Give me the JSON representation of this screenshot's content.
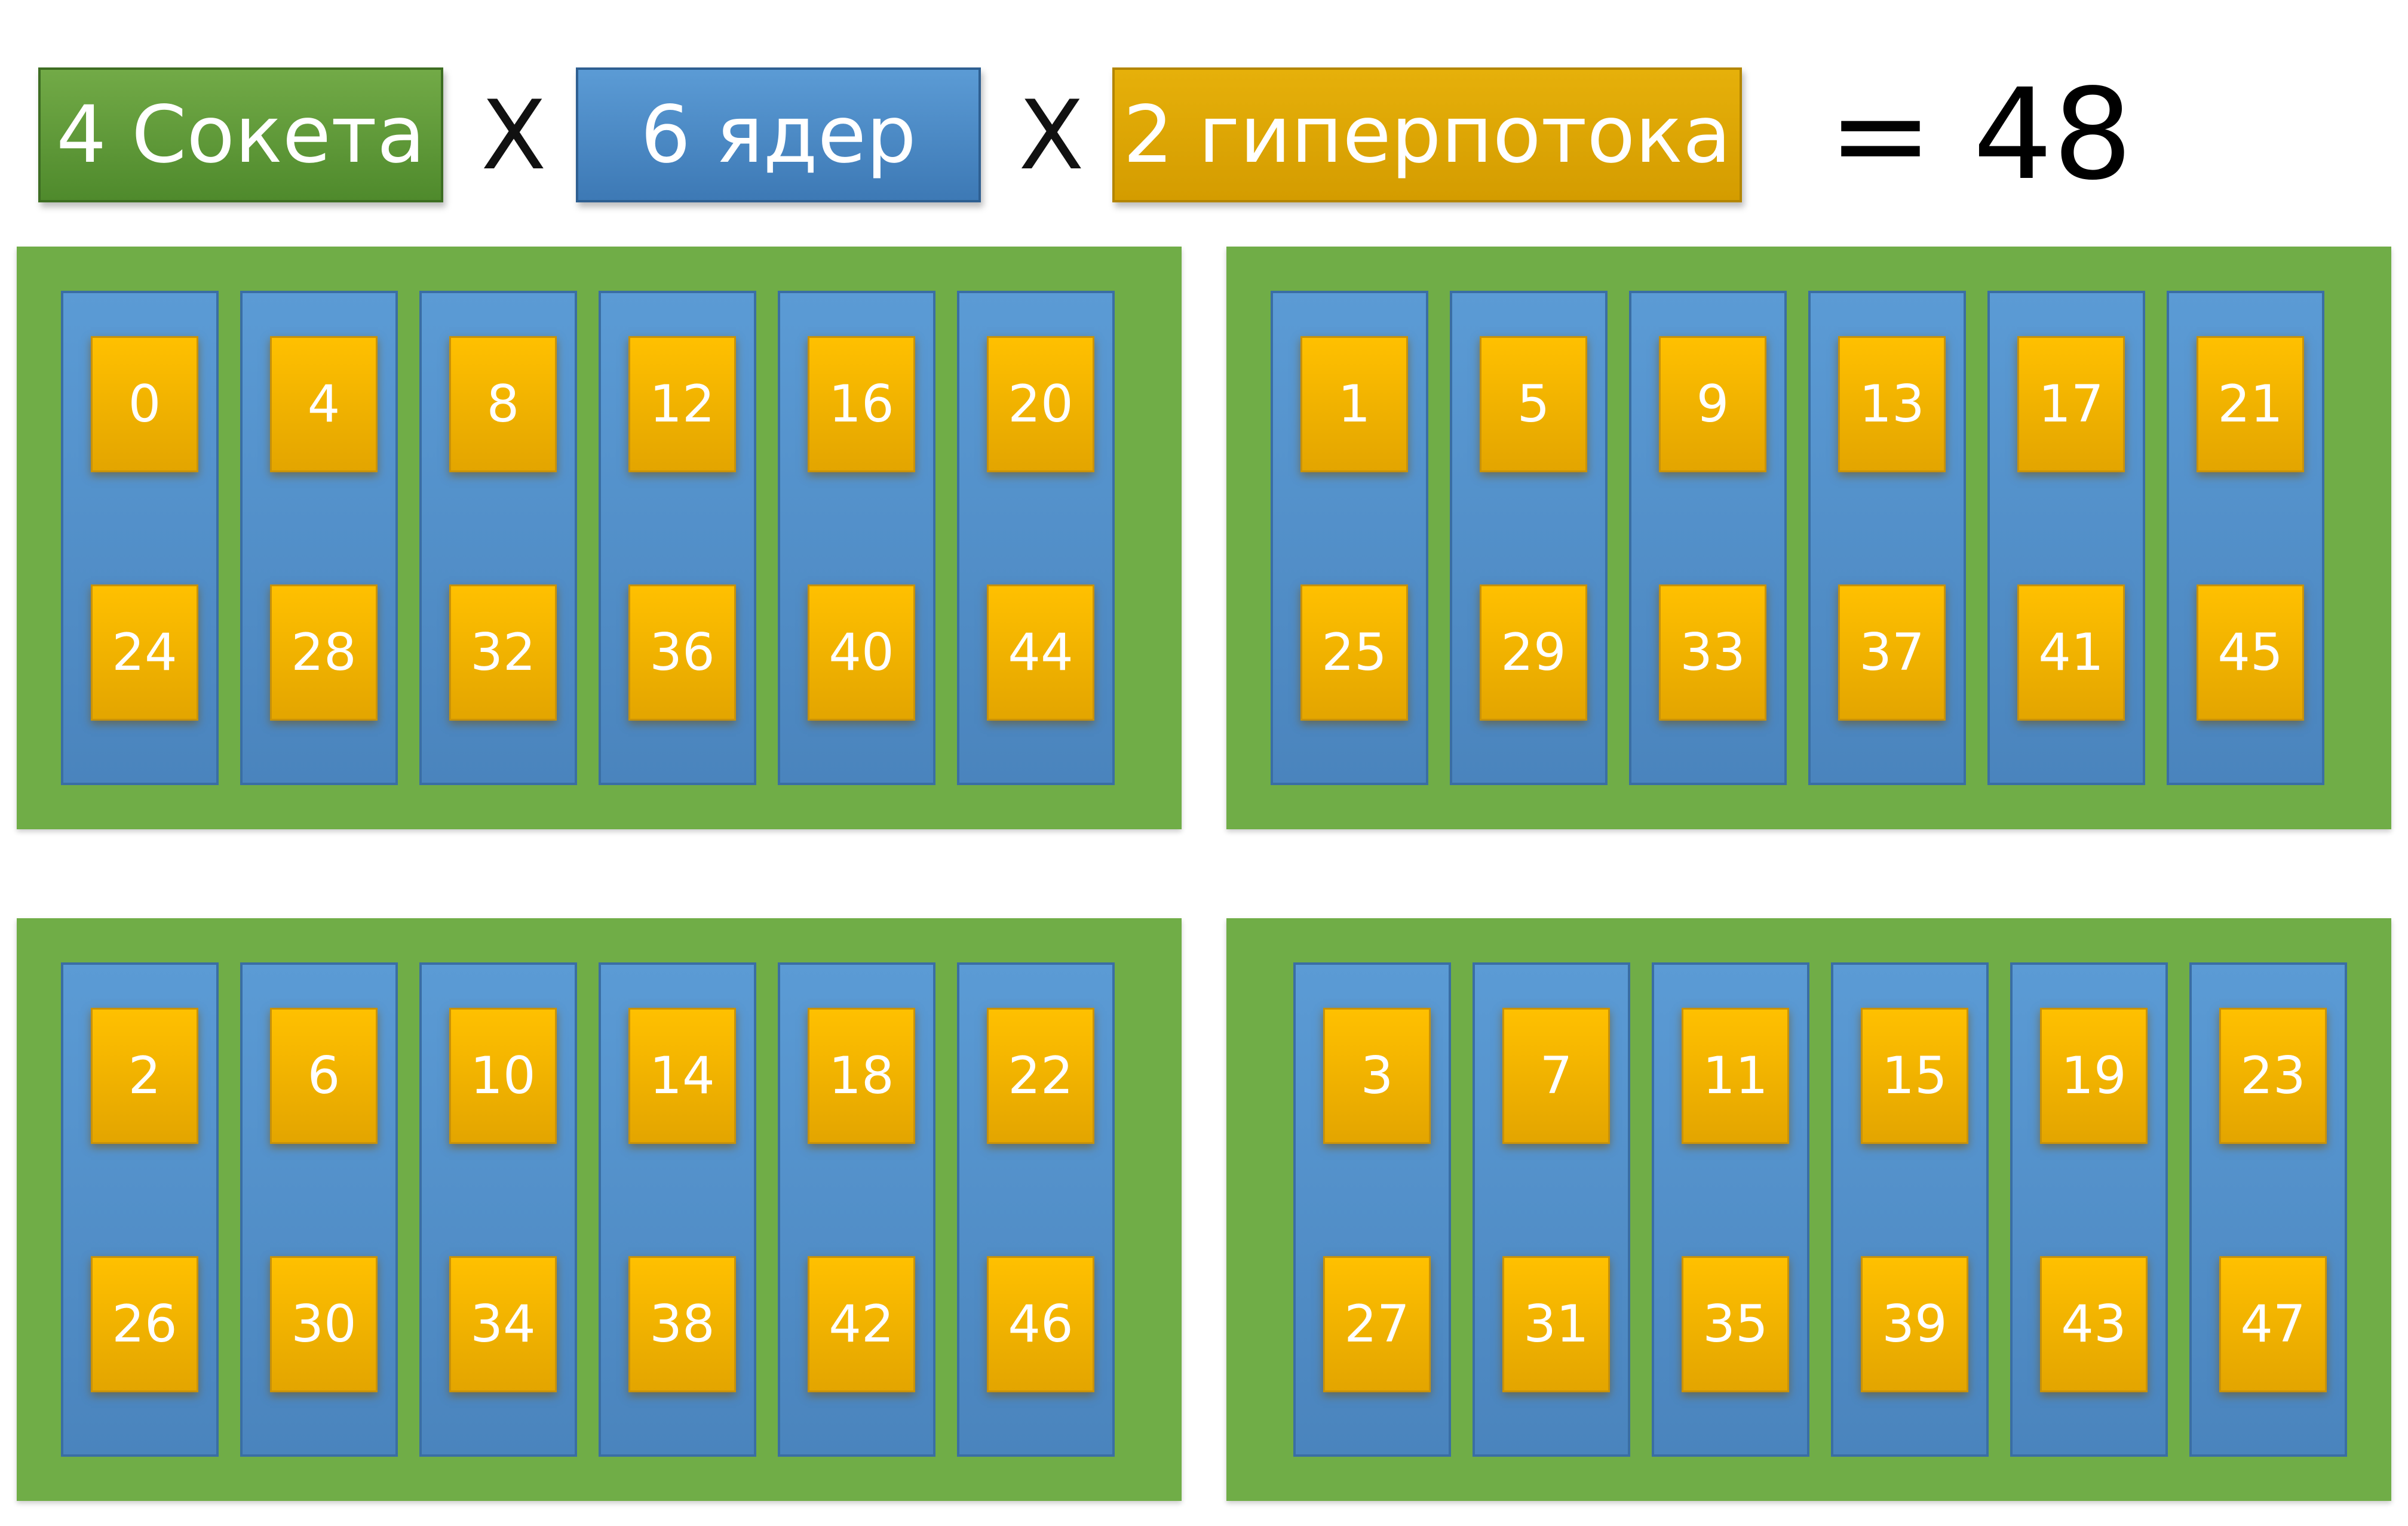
{
  "header": {
    "sockets_label": "4 Сокета",
    "multiply_1": "X",
    "cores_label": "6 ядер",
    "multiply_2": "X",
    "threads_label": "2 гиперпотока",
    "result": "= 48"
  },
  "colors": {
    "socket_green": "#70ad47",
    "core_blue": "#5b9bd5",
    "thread_yellow": "#ffc000"
  },
  "sockets": [
    {
      "cores": [
        {
          "threads": [
            "0",
            "24"
          ]
        },
        {
          "threads": [
            "4",
            "28"
          ]
        },
        {
          "threads": [
            "8",
            "32"
          ]
        },
        {
          "threads": [
            "12",
            "36"
          ]
        },
        {
          "threads": [
            "16",
            "40"
          ]
        },
        {
          "threads": [
            "20",
            "44"
          ]
        }
      ]
    },
    {
      "cores": [
        {
          "threads": [
            "1",
            "25"
          ]
        },
        {
          "threads": [
            "5",
            "29"
          ]
        },
        {
          "threads": [
            "9",
            "33"
          ]
        },
        {
          "threads": [
            "13",
            "37"
          ]
        },
        {
          "threads": [
            "17",
            "41"
          ]
        },
        {
          "threads": [
            "21",
            "45"
          ]
        }
      ]
    },
    {
      "cores": [
        {
          "threads": [
            "2",
            "26"
          ]
        },
        {
          "threads": [
            "6",
            "30"
          ]
        },
        {
          "threads": [
            "10",
            "34"
          ]
        },
        {
          "threads": [
            "14",
            "38"
          ]
        },
        {
          "threads": [
            "18",
            "42"
          ]
        },
        {
          "threads": [
            "22",
            "46"
          ]
        }
      ]
    },
    {
      "cores": [
        {
          "threads": [
            "3",
            "27"
          ]
        },
        {
          "threads": [
            "7",
            "31"
          ]
        },
        {
          "threads": [
            "11",
            "35"
          ]
        },
        {
          "threads": [
            "15",
            "39"
          ]
        },
        {
          "threads": [
            "19",
            "43"
          ]
        },
        {
          "threads": [
            "23",
            "47"
          ]
        }
      ]
    }
  ]
}
